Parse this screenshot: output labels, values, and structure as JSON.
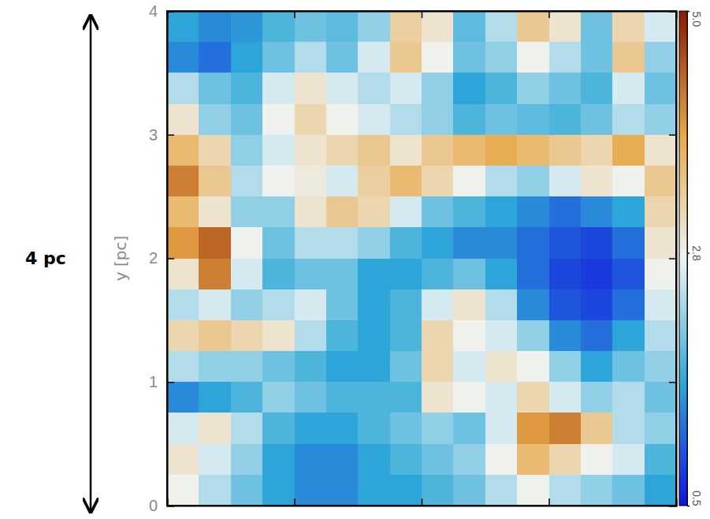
{
  "chart_data": {
    "type": "heatmap",
    "ylabel": "y [pc]",
    "annotations": [
      {
        "text": "4 pc"
      }
    ],
    "xlim": [
      0,
      4
    ],
    "ylim": [
      0,
      4
    ],
    "xticks": [
      0,
      1,
      2,
      3,
      4
    ],
    "yticks": [
      0,
      1,
      2,
      3,
      4
    ],
    "tick_labels": "y",
    "x": [
      0.125,
      0.375,
      0.625,
      0.875,
      1.125,
      1.375,
      1.625,
      1.875,
      2.125,
      2.375,
      2.625,
      2.875,
      3.125,
      3.375,
      3.625,
      3.875
    ],
    "y": [
      3.875,
      3.625,
      3.375,
      3.125,
      2.875,
      2.625,
      2.375,
      2.125,
      1.875,
      1.625,
      1.375,
      1.125,
      0.875,
      0.625,
      0.375,
      0.125
    ],
    "z": [
      [
        1.6,
        1.4,
        1.5,
        1.8,
        2.0,
        1.9,
        2.2,
        3.3,
        3.0,
        1.9,
        2.4,
        3.4,
        3.0,
        2.0,
        3.2,
        2.6
      ],
      [
        1.4,
        1.2,
        1.6,
        2.0,
        2.4,
        2.0,
        2.6,
        3.4,
        2.8,
        2.0,
        2.2,
        2.8,
        2.4,
        2.0,
        3.4,
        2.2
      ],
      [
        2.4,
        2.0,
        1.8,
        2.6,
        3.0,
        2.6,
        2.4,
        2.6,
        2.2,
        1.6,
        1.8,
        2.2,
        2.0,
        1.8,
        2.6,
        2.0
      ],
      [
        3.0,
        2.2,
        2.0,
        2.8,
        3.2,
        2.8,
        2.6,
        2.4,
        2.2,
        1.8,
        2.0,
        1.9,
        1.8,
        2.0,
        2.4,
        2.2
      ],
      [
        3.6,
        3.2,
        2.2,
        2.6,
        3.0,
        3.2,
        3.4,
        3.0,
        3.4,
        3.6,
        3.8,
        3.6,
        3.4,
        3.2,
        3.8,
        3.0
      ],
      [
        4.2,
        3.4,
        2.4,
        2.8,
        2.9,
        2.6,
        3.3,
        3.6,
        3.2,
        2.8,
        2.4,
        2.2,
        2.6,
        3.0,
        2.8,
        3.4
      ],
      [
        3.6,
        3.0,
        2.2,
        2.2,
        3.0,
        3.4,
        3.2,
        2.6,
        2.0,
        1.8,
        1.6,
        1.4,
        1.2,
        1.4,
        1.6,
        3.2
      ],
      [
        4.0,
        4.4,
        2.8,
        2.0,
        2.4,
        2.4,
        2.2,
        1.8,
        1.6,
        1.4,
        1.4,
        1.2,
        1.0,
        0.9,
        1.2,
        3.0
      ],
      [
        3.0,
        4.2,
        2.6,
        1.8,
        2.0,
        2.0,
        1.6,
        1.6,
        1.8,
        2.0,
        1.6,
        1.2,
        0.9,
        0.8,
        1.0,
        2.8
      ],
      [
        2.4,
        2.6,
        2.2,
        2.4,
        2.6,
        2.0,
        1.6,
        1.8,
        2.6,
        3.0,
        2.4,
        1.4,
        1.0,
        0.9,
        1.2,
        2.6
      ],
      [
        3.2,
        3.4,
        3.2,
        3.0,
        2.4,
        1.8,
        1.6,
        1.8,
        3.2,
        2.8,
        2.6,
        2.2,
        1.4,
        1.2,
        1.6,
        2.4
      ],
      [
        2.4,
        2.2,
        2.2,
        2.0,
        1.8,
        1.6,
        1.6,
        2.0,
        3.2,
        2.6,
        3.0,
        2.8,
        2.2,
        1.6,
        2.0,
        2.2
      ],
      [
        1.4,
        1.6,
        1.8,
        2.2,
        2.0,
        1.8,
        1.8,
        1.8,
        3.0,
        2.8,
        2.6,
        3.2,
        2.6,
        2.2,
        2.4,
        2.0
      ],
      [
        2.6,
        3.0,
        2.4,
        1.8,
        1.6,
        1.6,
        1.8,
        2.0,
        2.2,
        2.0,
        2.6,
        4.0,
        4.2,
        3.4,
        2.4,
        2.2
      ],
      [
        3.0,
        2.6,
        2.2,
        1.6,
        1.4,
        1.4,
        1.6,
        1.8,
        2.0,
        2.2,
        2.8,
        3.6,
        3.2,
        2.8,
        2.6,
        1.8
      ],
      [
        2.8,
        2.4,
        2.0,
        1.6,
        1.4,
        1.4,
        1.6,
        1.6,
        1.8,
        2.0,
        2.4,
        2.8,
        2.4,
        2.2,
        2.0,
        1.6
      ]
    ],
    "colorbar": {
      "lim": [
        0.5,
        5
      ],
      "ticks": [
        0.5,
        2.8,
        {
          "value": 5,
          "label": "5.0"
        }
      ]
    }
  }
}
